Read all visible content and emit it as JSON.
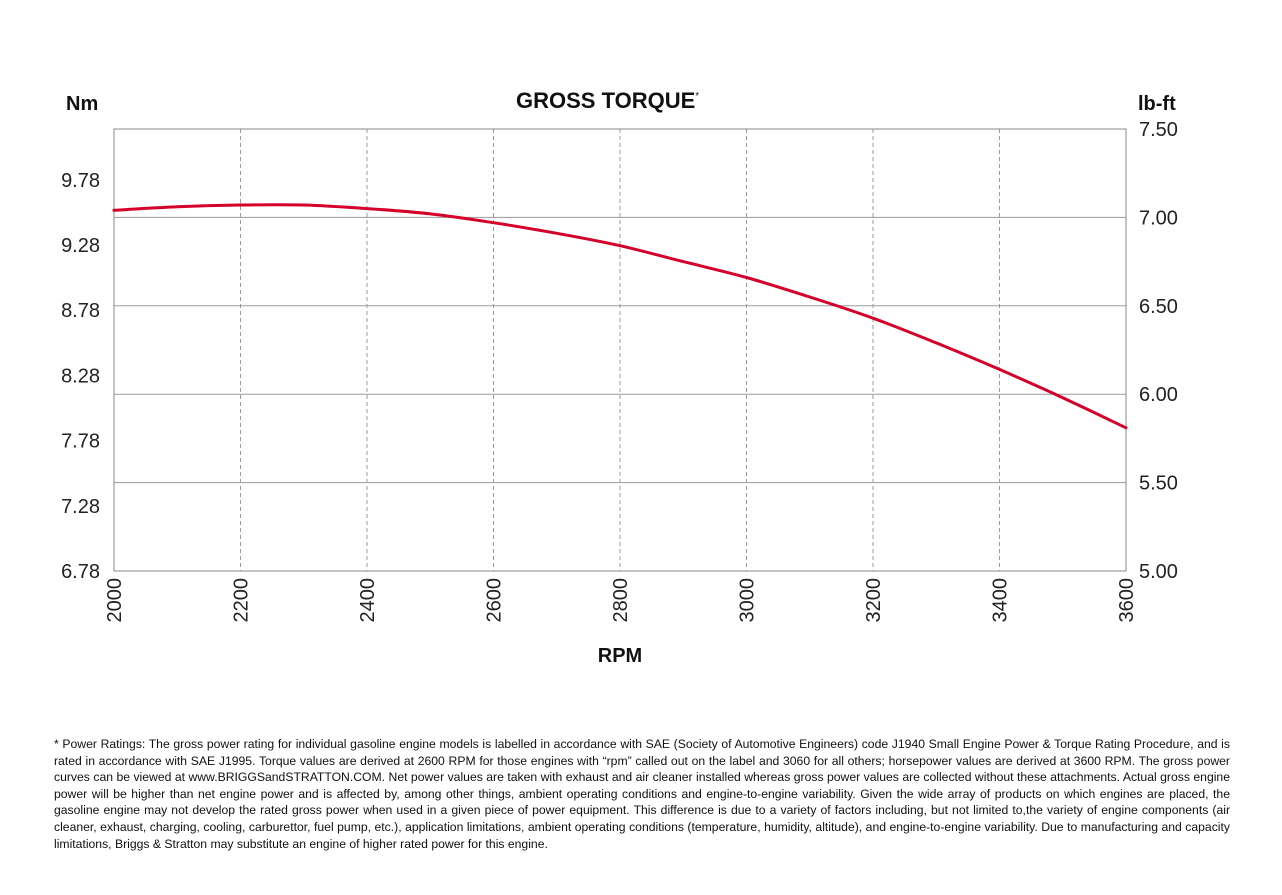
{
  "chart_data": {
    "type": "line",
    "title": "GROSS TORQUE",
    "title_mark": "*",
    "xlabel": "RPM",
    "left_unit": "Nm",
    "right_unit": "lb-ft",
    "xlim": [
      2000,
      3600
    ],
    "x_ticks": [
      "2000",
      "2200",
      "2400",
      "2600",
      "2800",
      "3000",
      "3200",
      "3400",
      "3600"
    ],
    "x_tick_values": [
      2000,
      2200,
      2400,
      2600,
      2800,
      3000,
      3200,
      3400,
      3600
    ],
    "ylim_right": [
      5.0,
      7.5
    ],
    "ylim_left": [
      6.78,
      10.17
    ],
    "right_ticks": [
      "7.50",
      "7.00",
      "6.50",
      "6.00",
      "5.50",
      "5.00"
    ],
    "right_tick_values": [
      7.5,
      7.0,
      6.5,
      6.0,
      5.5,
      5.0
    ],
    "left_ticks": [
      "9.78",
      "9.28",
      "8.78",
      "8.28",
      "7.78",
      "7.28",
      "6.78"
    ],
    "left_tick_values": [
      9.78,
      9.28,
      8.78,
      8.28,
      7.78,
      7.28,
      6.78
    ],
    "grid": true,
    "series": [
      {
        "x": [
          2000,
          2100,
          2200,
          2300,
          2400,
          2500,
          2600,
          2700,
          2800,
          2900,
          3000,
          3100,
          3200,
          3300,
          3400,
          3500,
          3600
        ],
        "y": [
          7.04,
          7.06,
          7.07,
          7.07,
          7.05,
          7.02,
          6.97,
          6.91,
          6.84,
          6.75,
          6.66,
          6.55,
          6.43,
          6.29,
          6.14,
          5.98,
          5.81
        ],
        "unit": "lb-ft",
        "color": "#d4002a"
      }
    ]
  },
  "footnote": "* Power Ratings: The gross power rating for individual gasoline engine models is labelled in accordance with SAE (Society of Automotive Engineers) code J1940 Small Engine Power & Torque Rating Procedure, and is rated in accordance with SAE J1995. Torque values are derived at 2600 RPM for those engines with “rpm” called out on the label and 3060 for all others; horsepower values are derived at 3600 RPM. The gross power curves can be viewed at www.BRIGGSandSTRATTON.COM. Net power values are taken with exhaust and air cleaner installed whereas gross power values are collected without these attachments. Actual gross engine power will be higher than net engine power and is affected by, among other things, ambient operating conditions and engine-to-engine variability. Given the wide array of products on which engines are placed, the gasoline engine may not develop the rated gross power when used in a given piece of power equipment. This difference is due to a variety of factors including, but not limited to,the variety of engine components (air cleaner, exhaust, charging, cooling, carburettor, fuel pump, etc.), application limitations, ambient operating conditions (temperature, humidity, altitude), and engine-to-engine variability. Due to manufacturing and capacity limitations, Briggs & Stratton may substitute an engine of higher rated power for this engine."
}
